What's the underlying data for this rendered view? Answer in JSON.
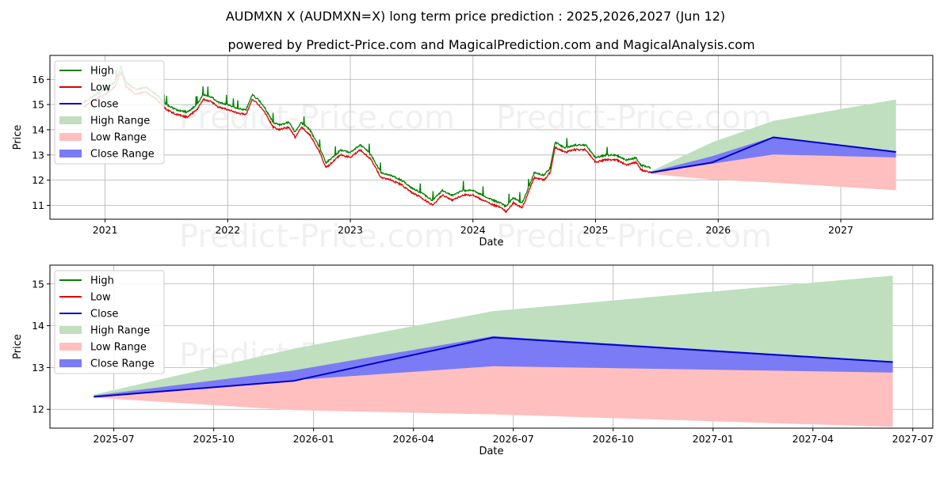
{
  "title": "AUDMXN X (AUDMXN=X) long term price prediction : 2025,2026,2027 (Jun 12)",
  "subtitle": "powered by Predict-Price.com and MagicalPrediction.com and MagicalAnalysis.com",
  "watermark": "Predict-Price.com",
  "colors": {
    "high": "#008000",
    "low": "#e00000",
    "close": "#0000cc",
    "high_range": "#bfdfbf",
    "low_range": "#ffbfbf",
    "close_range": "#7b7bf5"
  },
  "legend": [
    {
      "label": "High",
      "kind": "line",
      "color_key": "high"
    },
    {
      "label": "Low",
      "kind": "line",
      "color_key": "low"
    },
    {
      "label": "Close",
      "kind": "line",
      "color_key": "close"
    },
    {
      "label": "High Range",
      "kind": "patch",
      "color_key": "high_range"
    },
    {
      "label": "Low Range",
      "kind": "patch",
      "color_key": "low_range"
    },
    {
      "label": "Close Range",
      "kind": "patch",
      "color_key": "close_range"
    }
  ],
  "chart_data": [
    {
      "type": "line",
      "panel": "top",
      "xlabel": "Date",
      "ylabel": "Price",
      "xlim": [
        2020.55,
        2027.75
      ],
      "ylim": [
        10.45,
        16.95
      ],
      "x_ticks": [
        2021,
        2022,
        2023,
        2024,
        2025,
        2026,
        2027
      ],
      "x_tick_labels": [
        "2021",
        "2022",
        "2023",
        "2024",
        "2025",
        "2026",
        "2027"
      ],
      "y_ticks": [
        11,
        12,
        13,
        14,
        15,
        16
      ],
      "y_tick_labels": [
        "11",
        "12",
        "13",
        "14",
        "15",
        "16"
      ],
      "legend_position": "top-left",
      "history_close": {
        "x": [
          2020.83,
          2020.92,
          2021.0,
          2021.08,
          2021.13,
          2021.17,
          2021.25,
          2021.33,
          2021.42,
          2021.5,
          2021.58,
          2021.67,
          2021.75,
          2021.8,
          2021.87,
          2021.92,
          2022.0,
          2022.08,
          2022.15,
          2022.2,
          2022.25,
          2022.3,
          2022.37,
          2022.42,
          2022.5,
          2022.55,
          2022.6,
          2022.67,
          2022.75,
          2022.8,
          2022.83,
          2022.92,
          2023.0,
          2023.08,
          2023.13,
          2023.17,
          2023.25,
          2023.33,
          2023.42,
          2023.5,
          2023.58,
          2023.67,
          2023.75,
          2023.83,
          2023.92,
          2024.0,
          2024.08,
          2024.17,
          2024.23,
          2024.27,
          2024.33,
          2024.4,
          2024.42,
          2024.5,
          2024.58,
          2024.63,
          2024.67,
          2024.75,
          2024.83,
          2024.92,
          2025.0,
          2025.08,
          2025.17,
          2025.25,
          2025.33,
          2025.37,
          2025.45
        ],
        "close": [
          15.0,
          15.3,
          15.5,
          15.8,
          16.4,
          15.8,
          15.5,
          15.6,
          15.3,
          14.9,
          14.7,
          14.6,
          14.9,
          15.3,
          15.2,
          15.0,
          14.9,
          14.75,
          14.7,
          15.3,
          15.1,
          14.8,
          14.2,
          14.1,
          14.2,
          13.8,
          14.2,
          13.9,
          13.2,
          12.6,
          12.7,
          13.1,
          13.0,
          13.3,
          13.1,
          12.9,
          12.2,
          12.1,
          11.9,
          11.6,
          11.4,
          11.1,
          11.5,
          11.3,
          11.5,
          11.5,
          11.3,
          11.1,
          11.0,
          10.85,
          11.2,
          11.0,
          11.2,
          12.2,
          12.1,
          12.4,
          13.4,
          13.2,
          13.3,
          13.3,
          12.8,
          12.9,
          12.9,
          12.7,
          12.8,
          12.5,
          12.4
        ]
      },
      "forecast": {
        "x": [
          2025.45,
          2025.95,
          2026.45,
          2027.45
        ],
        "close": [
          12.3,
          12.7,
          13.7,
          13.12
        ],
        "high_range_upper": [
          12.35,
          13.5,
          14.35,
          15.2
        ],
        "close_range_upper": [
          12.33,
          12.95,
          13.72,
          13.15
        ],
        "close_range_lower": [
          12.3,
          12.65,
          13.02,
          12.9
        ],
        "low_range_lower": [
          12.25,
          12.02,
          11.9,
          11.6
        ]
      }
    },
    {
      "type": "line",
      "panel": "bottom",
      "xlabel": "Date",
      "ylabel": "Price",
      "xlim": [
        2025.34,
        2027.55
      ],
      "ylim": [
        11.55,
        15.45
      ],
      "x_ticks": [
        2025.5,
        2025.75,
        2026.0,
        2026.25,
        2026.5,
        2026.75,
        2027.0,
        2027.25,
        2027.5
      ],
      "x_tick_labels": [
        "2025-07",
        "2025-10",
        "2026-01",
        "2026-04",
        "2026-07",
        "2026-10",
        "2027-01",
        "2027-04",
        "2027-07"
      ],
      "y_ticks": [
        12,
        13,
        14,
        15
      ],
      "y_tick_labels": [
        "12",
        "13",
        "14",
        "15"
      ],
      "legend_position": "top-left",
      "forecast": {
        "x": [
          2025.45,
          2025.95,
          2026.45,
          2027.45
        ],
        "close": [
          12.3,
          12.68,
          13.72,
          13.13
        ],
        "high_range_upper": [
          12.35,
          13.45,
          14.35,
          15.2
        ],
        "close_range_upper": [
          12.33,
          12.93,
          13.75,
          13.15
        ],
        "close_range_lower": [
          12.3,
          12.7,
          13.03,
          12.88
        ],
        "low_range_lower": [
          12.28,
          11.98,
          11.88,
          11.58
        ]
      }
    }
  ]
}
